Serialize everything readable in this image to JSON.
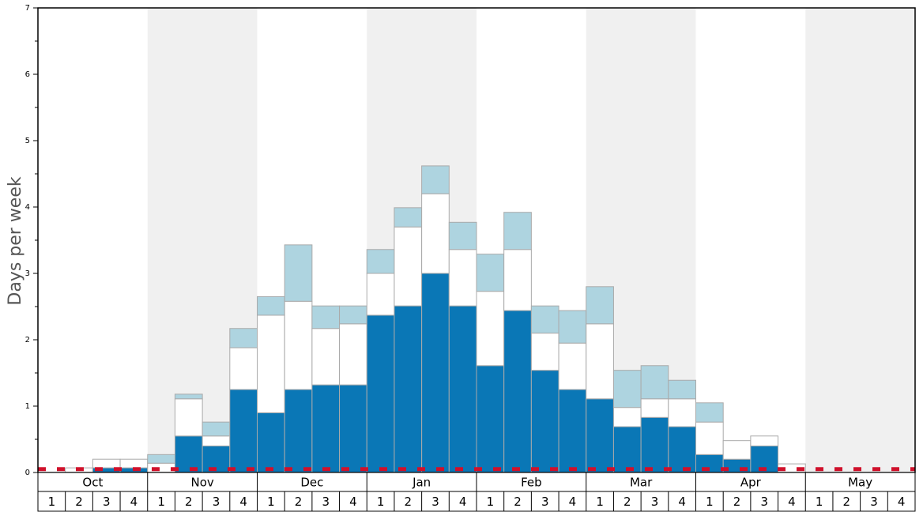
{
  "chart_data": {
    "type": "stacked-bar",
    "ylabel": "Days per week",
    "ylim": [
      0,
      7
    ],
    "yticks": [
      0,
      1,
      2,
      3,
      4,
      5,
      6,
      7
    ],
    "yminor_ticks": [
      0.5,
      1.5,
      2.5,
      3.5,
      4.5,
      5.5,
      6.5
    ],
    "months": [
      "Oct",
      "Nov",
      "Dec",
      "Jan",
      "Feb",
      "Mar",
      "Apr",
      "May"
    ],
    "categories": [
      "1",
      "2",
      "3",
      "4",
      "1",
      "2",
      "3",
      "4",
      "1",
      "2",
      "3",
      "4",
      "1",
      "2",
      "3",
      "4",
      "1",
      "2",
      "3",
      "4",
      "1",
      "2",
      "3",
      "4",
      "1",
      "2",
      "3",
      "4",
      "1",
      "2",
      "3",
      "4"
    ],
    "series": [
      {
        "color": "#0a77b6",
        "values": [
          0,
          0,
          0.07,
          0.07,
          0,
          0.55,
          0.4,
          1.25,
          0.9,
          1.25,
          1.32,
          1.32,
          2.37,
          2.51,
          3.0,
          2.51,
          1.61,
          2.44,
          1.54,
          1.25,
          1.11,
          0.69,
          0.83,
          0.69,
          0.27,
          0.2,
          0.4,
          0,
          0,
          0,
          0,
          0
        ]
      },
      {
        "color": "#ffffff",
        "values": [
          0,
          0.07,
          0.13,
          0.13,
          0.14,
          0.56,
          0.15,
          0.63,
          1.47,
          1.33,
          0.85,
          0.92,
          0.63,
          1.19,
          1.2,
          0.85,
          1.12,
          0.92,
          0.56,
          0.7,
          1.13,
          0.29,
          0.28,
          0.42,
          0.49,
          0.28,
          0.15,
          0.13,
          0,
          0,
          0,
          0
        ]
      },
      {
        "color": "#aed4e0",
        "values": [
          0,
          0,
          0,
          0,
          0.13,
          0.07,
          0.21,
          0.29,
          0.28,
          0.85,
          0.34,
          0.27,
          0.36,
          0.29,
          0.42,
          0.41,
          0.56,
          0.56,
          0.41,
          0.49,
          0.56,
          0.56,
          0.5,
          0.28,
          0.29,
          0,
          0,
          0,
          0,
          0,
          0,
          0
        ]
      }
    ],
    "reference_line": {
      "value": 0.05,
      "color": "#d0112b"
    }
  }
}
